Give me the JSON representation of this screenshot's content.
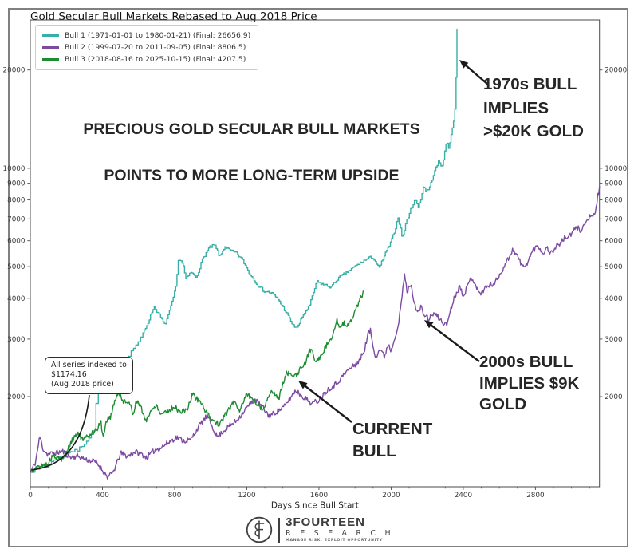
{
  "frame": {
    "title": "Gold Secular Bull Markets Rebased to Aug 2018 Price"
  },
  "legend": {
    "items": [
      {
        "label": "Bull 1 (1971-01-01 to 1980-01-21) (Final: 26656.9)",
        "color": "#36b0a6"
      },
      {
        "label": "Bull 2 (1999-07-20 to 2011-09-05) (Final: 8806.5)",
        "color": "#7c4aa2"
      },
      {
        "label": "Bull 3 (2018-08-16 to 2025-10-15) (Final: 4207.5)",
        "color": "#1d8c33"
      }
    ]
  },
  "annotations": {
    "headline_line1": "PRECIOUS GOLD SECULAR BULL MARKETS",
    "headline_line2": "POINTS TO MORE LONG-TERM UPSIDE",
    "bull_1970s": "1970s BULL\nIMPLIES\n>$20K GOLD",
    "bull_2000s": "2000s BULL\nIMPLIES $9K\nGOLD",
    "current_bull": "CURRENT\nBULL",
    "indexed_note": "All series indexed to\n$1174.16\n(Aug 2018 price)"
  },
  "footer": {
    "brand": "3FOURTEEN",
    "brand_sub": "R E S E A R C H",
    "tagline": "MANAGE RISK. EXPLOIT OPPORTUNITY"
  },
  "chart_data": {
    "type": "line",
    "title": "Gold Secular Bull Markets Rebased to Aug 2018 Price",
    "xlabel": "Days Since Bull Start",
    "ylabel": "",
    "x_ticks": [
      0,
      400,
      800,
      1200,
      1600,
      2000,
      2400,
      2800
    ],
    "x_minor_step": 100,
    "y_ticks": [
      2000,
      3000,
      4000,
      5000,
      6000,
      7000,
      8000,
      9000,
      10000,
      20000
    ],
    "x_range": [
      0,
      3155
    ],
    "y_range": [
      1057,
      28300
    ],
    "y_scale": "log",
    "index_value": 1174.16,
    "legend_position": "upper-left",
    "grid": false,
    "series": [
      {
        "name": "Bull 1 (1971-01-01 to 1980-01-21)",
        "final": 26656.9,
        "color": "#36b0a6",
        "step": true,
        "points": [
          [
            0,
            1174
          ],
          [
            30,
            1192
          ],
          [
            60,
            1232
          ],
          [
            95,
            1218
          ],
          [
            130,
            1285
          ],
          [
            170,
            1312
          ],
          [
            210,
            1352
          ],
          [
            260,
            1368
          ],
          [
            300,
            1442
          ],
          [
            335,
            1525
          ],
          [
            352,
            1565
          ],
          [
            368,
            2060
          ],
          [
            400,
            2105
          ],
          [
            432,
            2155
          ],
          [
            465,
            2290
          ],
          [
            500,
            2335
          ],
          [
            540,
            2650
          ],
          [
            575,
            2835
          ],
          [
            610,
            3005
          ],
          [
            650,
            3355
          ],
          [
            685,
            3780
          ],
          [
            715,
            3550
          ],
          [
            745,
            3305
          ],
          [
            775,
            3705
          ],
          [
            806,
            4310
          ],
          [
            822,
            5330
          ],
          [
            845,
            5105
          ],
          [
            862,
            4565
          ],
          [
            890,
            4805
          ],
          [
            920,
            4635
          ],
          [
            955,
            5285
          ],
          [
            990,
            5705
          ],
          [
            1020,
            5825
          ],
          [
            1050,
            5355
          ],
          [
            1078,
            5775
          ],
          [
            1105,
            5605
          ],
          [
            1140,
            5505
          ],
          [
            1175,
            5255
          ],
          [
            1215,
            4755
          ],
          [
            1255,
            4435
          ],
          [
            1295,
            4205
          ],
          [
            1335,
            4155
          ],
          [
            1375,
            3955
          ],
          [
            1415,
            3645
          ],
          [
            1458,
            3285
          ],
          [
            1482,
            3262
          ],
          [
            1512,
            3555
          ],
          [
            1548,
            3805
          ],
          [
            1587,
            4497
          ],
          [
            1625,
            4405
          ],
          [
            1666,
            4330
          ],
          [
            1705,
            4605
          ],
          [
            1742,
            4755
          ],
          [
            1777,
            4905
          ],
          [
            1810,
            5055
          ],
          [
            1843,
            5190
          ],
          [
            1875,
            5305
          ],
          [
            1896,
            5355
          ],
          [
            1915,
            5155
          ],
          [
            1932,
            4930
          ],
          [
            1962,
            5405
          ],
          [
            1998,
            5930
          ],
          [
            2025,
            6605
          ],
          [
            2038,
            7105
          ],
          [
            2052,
            6505
          ],
          [
            2062,
            6115
          ],
          [
            2085,
            6905
          ],
          [
            2110,
            7505
          ],
          [
            2131,
            8030
          ],
          [
            2150,
            7605
          ],
          [
            2168,
            8205
          ],
          [
            2179,
            8830
          ],
          [
            2195,
            8505
          ],
          [
            2212,
            8705
          ],
          [
            2235,
            9605
          ],
          [
            2263,
            10505
          ],
          [
            2280,
            10105
          ],
          [
            2295,
            11005
          ],
          [
            2308,
            12205
          ],
          [
            2318,
            11505
          ],
          [
            2330,
            12505
          ],
          [
            2340,
            13405
          ],
          [
            2348,
            14005
          ],
          [
            2354,
            15505
          ],
          [
            2359,
            18005
          ],
          [
            2362,
            21005
          ],
          [
            2365,
            26656.9
          ]
        ]
      },
      {
        "name": "Bull 2 (1999-07-20 to 2011-09-05)",
        "final": 8806.5,
        "color": "#7c4aa2",
        "step": false,
        "points": [
          [
            0,
            1174
          ],
          [
            28,
            1255
          ],
          [
            53,
            1511
          ],
          [
            70,
            1385
          ],
          [
            95,
            1332
          ],
          [
            150,
            1348
          ],
          [
            180,
            1360
          ],
          [
            225,
            1302
          ],
          [
            262,
            1315
          ],
          [
            310,
            1282
          ],
          [
            365,
            1262
          ],
          [
            430,
            1132
          ],
          [
            455,
            1165
          ],
          [
            475,
            1228
          ],
          [
            500,
            1342
          ],
          [
            540,
            1312
          ],
          [
            580,
            1356
          ],
          [
            620,
            1332
          ],
          [
            645,
            1300
          ],
          [
            690,
            1372
          ],
          [
            725,
            1398
          ],
          [
            770,
            1452
          ],
          [
            810,
            1502
          ],
          [
            852,
            1462
          ],
          [
            890,
            1476
          ],
          [
            932,
            1618
          ],
          [
            980,
            1745
          ],
          [
            1012,
            1608
          ],
          [
            1035,
            1505
          ],
          [
            1090,
            1605
          ],
          [
            1140,
            1682
          ],
          [
            1200,
            1852
          ],
          [
            1242,
            1962
          ],
          [
            1285,
            1862
          ],
          [
            1325,
            1742
          ],
          [
            1365,
            1800
          ],
          [
            1408,
            1862
          ],
          [
            1470,
            2090
          ],
          [
            1532,
            1960
          ],
          [
            1560,
            1905
          ],
          [
            1594,
            1942
          ],
          [
            1650,
            2105
          ],
          [
            1696,
            2192
          ],
          [
            1758,
            2402
          ],
          [
            1788,
            2480
          ],
          [
            1822,
            2560
          ],
          [
            1852,
            2780
          ],
          [
            1872,
            3100
          ],
          [
            1885,
            3200
          ],
          [
            1900,
            2850
          ],
          [
            1915,
            2655
          ],
          [
            1940,
            2800
          ],
          [
            1962,
            2652
          ],
          [
            1985,
            2905
          ],
          [
            2000,
            2760
          ],
          [
            2020,
            3050
          ],
          [
            2040,
            3300
          ],
          [
            2055,
            3800
          ],
          [
            2065,
            4300
          ],
          [
            2075,
            4700
          ],
          [
            2090,
            4150
          ],
          [
            2105,
            4450
          ],
          [
            2125,
            4000
          ],
          [
            2145,
            3600
          ],
          [
            2165,
            3750
          ],
          [
            2185,
            3550
          ],
          [
            2210,
            3450
          ],
          [
            2235,
            3600
          ],
          [
            2260,
            3500
          ],
          [
            2285,
            3380
          ],
          [
            2308,
            3312
          ],
          [
            2330,
            3700
          ],
          [
            2355,
            4082
          ],
          [
            2380,
            4350
          ],
          [
            2400,
            4100
          ],
          [
            2420,
            4300
          ],
          [
            2445,
            4650
          ],
          [
            2470,
            4400
          ],
          [
            2490,
            4100
          ],
          [
            2520,
            4300
          ],
          [
            2550,
            4400
          ],
          [
            2575,
            4452
          ],
          [
            2600,
            4700
          ],
          [
            2625,
            5000
          ],
          [
            2650,
            5300
          ],
          [
            2675,
            5650
          ],
          [
            2700,
            5400
          ],
          [
            2720,
            5100
          ],
          [
            2740,
            4950
          ],
          [
            2765,
            5300
          ],
          [
            2790,
            5650
          ],
          [
            2815,
            5800
          ],
          [
            2840,
            5500
          ],
          [
            2865,
            5700
          ],
          [
            2890,
            5490
          ],
          [
            2915,
            5800
          ],
          [
            2940,
            5900
          ],
          [
            2965,
            6150
          ],
          [
            2990,
            6185
          ],
          [
            3010,
            6400
          ],
          [
            3030,
            6600
          ],
          [
            3050,
            6450
          ],
          [
            3070,
            6700
          ],
          [
            3090,
            6950
          ],
          [
            3105,
            7205
          ],
          [
            3118,
            7000
          ],
          [
            3130,
            7300
          ],
          [
            3140,
            7600
          ],
          [
            3146,
            8400
          ],
          [
            3151,
            8250
          ],
          [
            3155,
            8806.5
          ]
        ]
      },
      {
        "name": "Bull 3 (2018-08-16 to 2025-10-15)",
        "final": 4207.5,
        "color": "#1d8c33",
        "step": false,
        "points": [
          [
            0,
            1174
          ],
          [
            20,
            1185
          ],
          [
            40,
            1215
          ],
          [
            70,
            1230
          ],
          [
            100,
            1250
          ],
          [
            125,
            1320
          ],
          [
            145,
            1298
          ],
          [
            175,
            1280
          ],
          [
            200,
            1340
          ],
          [
            215,
            1410
          ],
          [
            245,
            1510
          ],
          [
            262,
            1550
          ],
          [
            290,
            1475
          ],
          [
            320,
            1510
          ],
          [
            345,
            1560
          ],
          [
            370,
            1590
          ],
          [
            392,
            1675
          ],
          [
            403,
            1480
          ],
          [
            420,
            1690
          ],
          [
            445,
            1735
          ],
          [
            470,
            1960
          ],
          [
            490,
            2067
          ],
          [
            510,
            1935
          ],
          [
            530,
            1950
          ],
          [
            555,
            1870
          ],
          [
            570,
            1780
          ],
          [
            590,
            1950
          ],
          [
            615,
            1840
          ],
          [
            640,
            1690
          ],
          [
            660,
            1770
          ],
          [
            680,
            1830
          ],
          [
            700,
            1900
          ],
          [
            720,
            1770
          ],
          [
            745,
            1800
          ],
          [
            770,
            1815
          ],
          [
            800,
            1865
          ],
          [
            830,
            1790
          ],
          [
            855,
            1815
          ],
          [
            875,
            1850
          ],
          [
            900,
            2045
          ],
          [
            920,
            1975
          ],
          [
            940,
            1940
          ],
          [
            965,
            1840
          ],
          [
            990,
            1740
          ],
          [
            1015,
            1690
          ],
          [
            1050,
            1635
          ],
          [
            1075,
            1750
          ],
          [
            1095,
            1800
          ],
          [
            1130,
            1945
          ],
          [
            1160,
            1815
          ],
          [
            1200,
            2045
          ],
          [
            1225,
            1975
          ],
          [
            1255,
            1915
          ],
          [
            1290,
            1820
          ],
          [
            1330,
            2065
          ],
          [
            1355,
            2035
          ],
          [
            1380,
            1995
          ],
          [
            1400,
            2180
          ],
          [
            1420,
            2375
          ],
          [
            1445,
            2320
          ],
          [
            1470,
            2305
          ],
          [
            1495,
            2420
          ],
          [
            1520,
            2500
          ],
          [
            1550,
            2780
          ],
          [
            1565,
            2740
          ],
          [
            1580,
            2565
          ],
          [
            1610,
            2640
          ],
          [
            1630,
            2800
          ],
          [
            1650,
            2920
          ],
          [
            1670,
            3050
          ],
          [
            1685,
            3230
          ],
          [
            1700,
            3420
          ],
          [
            1712,
            3220
          ],
          [
            1725,
            3280
          ],
          [
            1740,
            3350
          ],
          [
            1755,
            3310
          ],
          [
            1770,
            3380
          ],
          [
            1785,
            3450
          ],
          [
            1800,
            3650
          ],
          [
            1815,
            3820
          ],
          [
            1830,
            4040
          ],
          [
            1838,
            3980
          ],
          [
            1845,
            4207.5
          ]
        ]
      }
    ]
  }
}
